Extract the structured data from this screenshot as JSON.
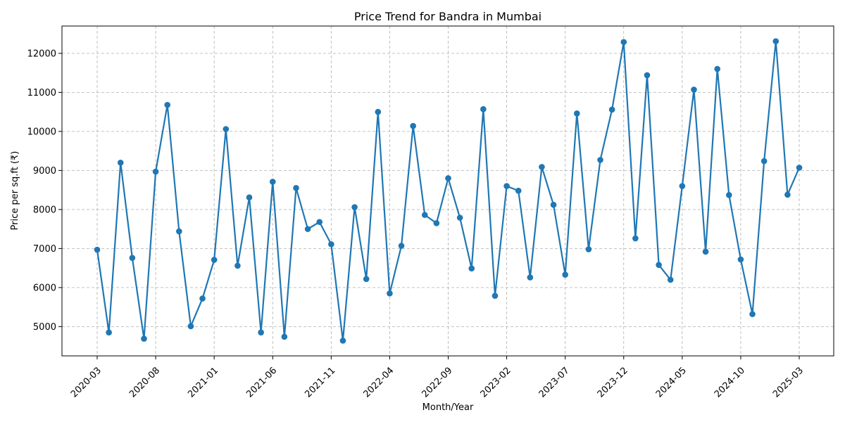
{
  "chart_data": {
    "type": "line",
    "title": "Price Trend for Bandra in Mumbai",
    "xlabel": "Month/Year",
    "ylabel": "Price per sq.ft (₹)",
    "grid": true,
    "line_color": "#1f77b4",
    "x_tick_labels": [
      "2020-03",
      "2020-08",
      "2021-01",
      "2021-06",
      "2021-11",
      "2022-04",
      "2022-09",
      "2023-02",
      "2023-07",
      "2023-12",
      "2024-05",
      "2024-10",
      "2025-03"
    ],
    "y_ticks": [
      5000,
      6000,
      7000,
      8000,
      9000,
      10000,
      11000,
      12000
    ],
    "ylim": [
      4250,
      12700
    ],
    "series": [
      {
        "x": [
          "2020-03",
          "2020-04",
          "2020-05",
          "2020-06",
          "2020-07",
          "2020-08",
          "2020-09",
          "2020-10",
          "2020-11",
          "2020-12",
          "2021-01",
          "2021-02",
          "2021-03",
          "2021-04",
          "2021-05",
          "2021-06",
          "2021-07",
          "2021-08",
          "2021-09",
          "2021-10",
          "2021-11",
          "2021-12",
          "2022-01",
          "2022-02",
          "2022-03",
          "2022-04",
          "2022-05",
          "2022-06",
          "2022-07",
          "2022-08",
          "2022-09",
          "2022-10",
          "2022-11",
          "2022-12",
          "2023-01",
          "2023-02",
          "2023-03",
          "2023-04",
          "2023-05",
          "2023-06",
          "2023-07",
          "2023-08",
          "2023-09",
          "2023-10",
          "2023-11",
          "2023-12",
          "2024-01",
          "2024-02",
          "2024-03",
          "2024-04",
          "2024-05",
          "2024-06",
          "2024-07",
          "2024-08",
          "2024-09",
          "2024-10",
          "2024-11",
          "2024-12",
          "2025-01",
          "2025-02",
          "2025-03"
        ],
        "values": [
          6970,
          4850,
          9200,
          6760,
          4690,
          8970,
          10680,
          7440,
          5010,
          5720,
          6710,
          10060,
          6560,
          8310,
          4850,
          8710,
          4740,
          8550,
          7500,
          7680,
          7110,
          4640,
          8060,
          6220,
          10500,
          5850,
          7070,
          10140,
          7860,
          7650,
          8800,
          7790,
          6490,
          10570,
          5790,
          8600,
          8480,
          6260,
          9090,
          8120,
          6330,
          10460,
          6980,
          9270,
          10560,
          12290,
          7260,
          11440,
          6580,
          6200,
          8600,
          11070,
          6920,
          11600,
          8370,
          6720,
          5320,
          9240,
          12310,
          8380,
          9070
        ]
      }
    ]
  }
}
